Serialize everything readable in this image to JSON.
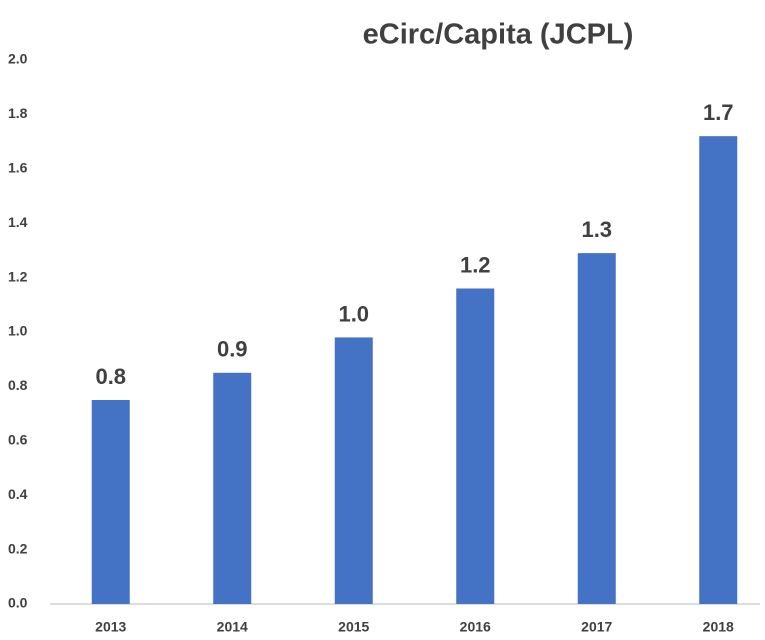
{
  "chart_data": {
    "type": "bar",
    "title": "eCirc/Capita (JCPL)",
    "categories": [
      "2013",
      "2014",
      "2015",
      "2016",
      "2017",
      "2018"
    ],
    "values": [
      0.75,
      0.85,
      0.98,
      1.16,
      1.29,
      1.72
    ],
    "value_labels": [
      "0.8",
      "0.9",
      "1.0",
      "1.2",
      "1.3",
      "1.7"
    ],
    "color": "#4472c4",
    "ylim": [
      0,
      2
    ],
    "yticks": [
      {
        "value": 0,
        "label": "0.0"
      },
      0.2,
      0.4,
      0.6,
      0.8,
      {
        "value": 1,
        "label": "1.0"
      },
      1.2,
      1.4,
      1.6,
      1.8,
      {
        "value": 2,
        "label": "2.0"
      }
    ],
    "grid": false
  }
}
